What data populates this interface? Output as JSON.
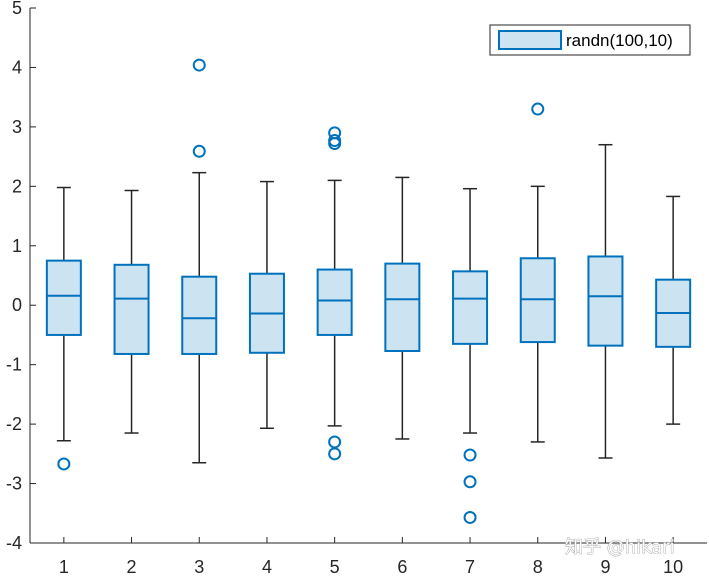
{
  "chart_data": {
    "type": "box",
    "categories": [
      "1",
      "2",
      "3",
      "4",
      "5",
      "6",
      "7",
      "8",
      "9",
      "10"
    ],
    "series": [
      {
        "name": "randn(100,10)",
        "boxes": [
          {
            "whisker_low": -2.28,
            "q1": -0.5,
            "median": 0.16,
            "q3": 0.75,
            "whisker_high": 1.98,
            "outliers": [
              -2.67
            ]
          },
          {
            "whisker_low": -2.15,
            "q1": -0.82,
            "median": 0.11,
            "q3": 0.68,
            "whisker_high": 1.93,
            "outliers": []
          },
          {
            "whisker_low": -2.65,
            "q1": -0.82,
            "median": -0.22,
            "q3": 0.48,
            "whisker_high": 2.23,
            "outliers": [
              2.59,
              4.04
            ]
          },
          {
            "whisker_low": -2.07,
            "q1": -0.8,
            "median": -0.14,
            "q3": 0.53,
            "whisker_high": 2.08,
            "outliers": []
          },
          {
            "whisker_low": -2.03,
            "q1": -0.5,
            "median": 0.08,
            "q3": 0.6,
            "whisker_high": 2.1,
            "outliers": [
              -2.3,
              -2.5,
              2.72,
              2.77,
              2.9
            ]
          },
          {
            "whisker_low": -2.25,
            "q1": -0.77,
            "median": 0.1,
            "q3": 0.7,
            "whisker_high": 2.15,
            "outliers": []
          },
          {
            "whisker_low": -2.15,
            "q1": -0.65,
            "median": 0.11,
            "q3": 0.57,
            "whisker_high": 1.96,
            "outliers": [
              -2.52,
              -2.97,
              -3.57
            ]
          },
          {
            "whisker_low": -2.3,
            "q1": -0.62,
            "median": 0.1,
            "q3": 0.79,
            "whisker_high": 2.0,
            "outliers": [
              3.3
            ]
          },
          {
            "whisker_low": -2.57,
            "q1": -0.68,
            "median": 0.15,
            "q3": 0.82,
            "whisker_high": 2.7,
            "outliers": []
          },
          {
            "whisker_low": -2.0,
            "q1": -0.7,
            "median": -0.13,
            "q3": 0.43,
            "whisker_high": 1.83,
            "outliers": []
          }
        ]
      }
    ],
    "ylim": [
      -4,
      5
    ],
    "yticks": [
      "-4",
      "-3",
      "-2",
      "-1",
      "0",
      "1",
      "2",
      "3",
      "4",
      "5"
    ],
    "xlim": [
      0.5,
      10.5
    ],
    "title": "",
    "xlabel": "",
    "ylabel": "",
    "grid": false,
    "legend": {
      "position": "top-right",
      "entries": [
        "randn(100,10)"
      ]
    },
    "colors": {
      "box_edge": "#0072BD",
      "box_fill": "#CCE3F2",
      "whisker": "#262626",
      "axis": "#262626",
      "outlier": "#0072BD"
    }
  },
  "watermark": "知乎 @hikari"
}
